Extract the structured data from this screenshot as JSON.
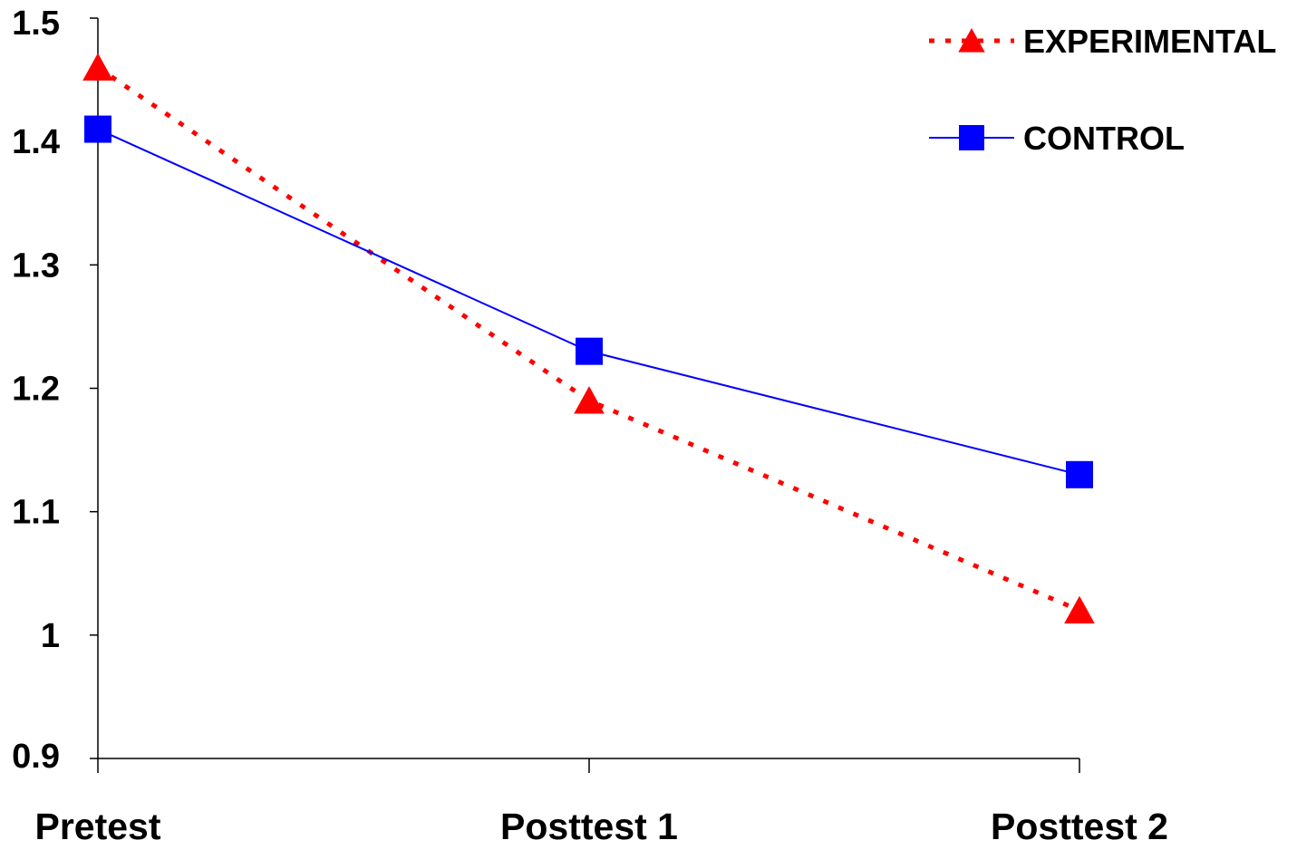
{
  "chart_data": {
    "type": "line",
    "categories": [
      "Pretest",
      "Posttest 1",
      "Posttest 2"
    ],
    "series": [
      {
        "name": "EXPERIMENTAL",
        "values": [
          1.46,
          1.19,
          1.02
        ],
        "color": "#ff0000",
        "line_style": "dotted",
        "marker": "triangle"
      },
      {
        "name": "CONTROL",
        "values": [
          1.41,
          1.23,
          1.13
        ],
        "color": "#0000ff",
        "line_style": "solid",
        "marker": "square"
      }
    ],
    "yticks": [
      "0.9",
      "1",
      "1.1",
      "1.2",
      "1.3",
      "1.4",
      "1.5"
    ],
    "ylim": [
      0.9,
      1.5
    ],
    "legend_position": "top-right",
    "grid": false,
    "title": "",
    "xlabel": "",
    "ylabel": ""
  }
}
